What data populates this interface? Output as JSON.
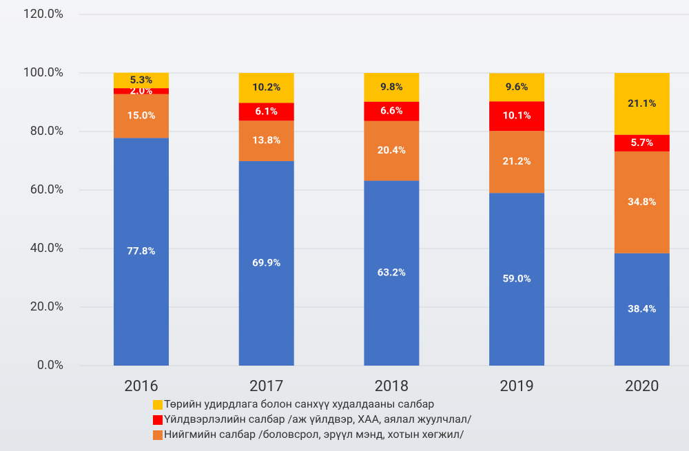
{
  "chart_data": {
    "type": "stacked_bar",
    "categories": [
      "2016",
      "2017",
      "2018",
      "2019",
      "2020"
    ],
    "series": [
      {
        "color": "#4472c4",
        "values": [
          77.8,
          69.9,
          63.2,
          59.0,
          38.4
        ],
        "value_labels": [
          "77.8%",
          "69.9%",
          "63.2%",
          "59.0%",
          "38.4%"
        ]
      },
      {
        "name": "Нийгмийн салбар /боловсрол, эрүүл мэнд, хотын хөгжил/",
        "color": "#ed7d31",
        "values": [
          15.0,
          13.8,
          20.4,
          21.2,
          34.8
        ],
        "value_labels": [
          "15.0%",
          "13.8%",
          "20.4%",
          "21.2%",
          "34.8%"
        ]
      },
      {
        "name": "Үйлдвэрлэлийн салбар /аж үйлдвэр, ХАА, аялал жуулчлал/",
        "color": "#ff0000",
        "values": [
          2.0,
          6.1,
          6.6,
          10.1,
          5.7
        ],
        "value_labels": [
          "2.0%",
          "6.1%",
          "6.6%",
          "10.1%",
          "5.7%"
        ]
      },
      {
        "name": "Төрийн удирдлага болон санхүү худалдааны салбар",
        "color": "#ffc000",
        "values": [
          5.3,
          10.2,
          9.8,
          9.6,
          21.1
        ],
        "value_labels": [
          "5.3%",
          "10.2%",
          "9.8%",
          "9.6%",
          "21.1%"
        ]
      }
    ],
    "ylim": [
      0,
      120
    ],
    "yticks": [
      {
        "value": 0,
        "label": "0.0%"
      },
      {
        "value": 20,
        "label": "20.0%"
      },
      {
        "value": 40,
        "label": "40.0%"
      },
      {
        "value": 60,
        "label": "60.0%"
      },
      {
        "value": 80,
        "label": "80.0%"
      },
      {
        "value": 100,
        "label": "100.0%"
      },
      {
        "value": 120,
        "label": "120.0%"
      }
    ],
    "grid": true
  }
}
